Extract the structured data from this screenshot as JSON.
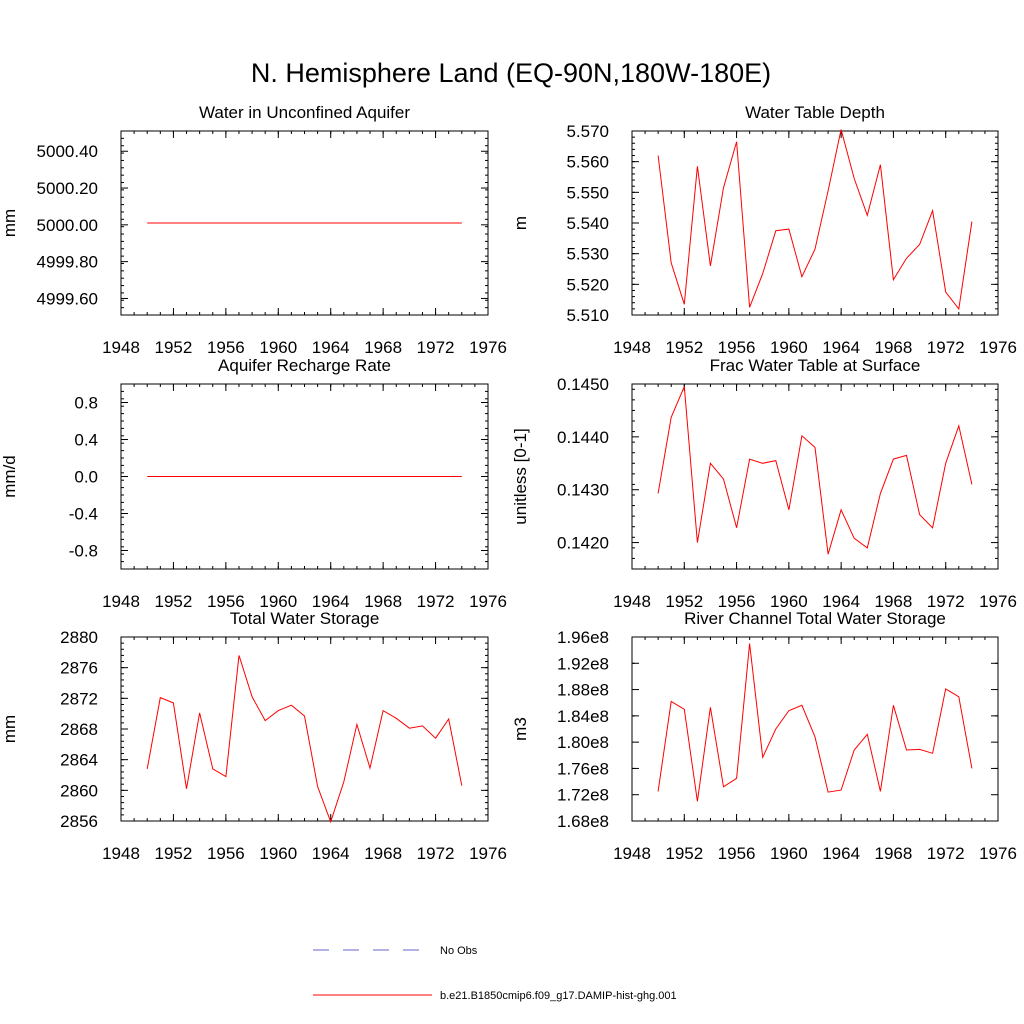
{
  "title": "N. Hemisphere Land (EQ-90N,180W-180E)",
  "colors": {
    "model": "#ff0000",
    "obs": "#6666cc"
  },
  "legend": [
    {
      "label": "No Obs",
      "style": "dashed",
      "color": "#6666cc"
    },
    {
      "label": "b.e21.B1850cmip6.f09_g17.DAMIP-hist-ghg.001",
      "style": "solid",
      "color": "#ff0000"
    }
  ],
  "chart_data": [
    {
      "type": "line",
      "title": "Water in Unconfined Aquifer",
      "ylabel": "mm",
      "xlim": [
        1948,
        1976
      ],
      "ylim": [
        4999.51,
        5000.51
      ],
      "xticks": [
        "1948",
        "1952",
        "1956",
        "1960",
        "1964",
        "1968",
        "1972",
        "1976"
      ],
      "yticks": [
        {
          "v": 4999.6,
          "label": "4999.60"
        },
        {
          "v": 4999.8,
          "label": "4999.80"
        },
        {
          "v": 5000.0,
          "label": "5000.00"
        },
        {
          "v": 5000.2,
          "label": "5000.20"
        },
        {
          "v": 5000.4,
          "label": "5000.40"
        }
      ],
      "minor_x": 1,
      "minor_y": 0.04,
      "series": [
        {
          "x": [
            1950,
            1951,
            1952,
            1953,
            1954,
            1955,
            1956,
            1957,
            1958,
            1959,
            1960,
            1961,
            1962,
            1963,
            1964,
            1965,
            1966,
            1967,
            1968,
            1969,
            1970,
            1971,
            1972,
            1973,
            1974
          ],
          "values": [
            5000.01,
            5000.01,
            5000.01,
            5000.01,
            5000.01,
            5000.01,
            5000.01,
            5000.01,
            5000.01,
            5000.01,
            5000.01,
            5000.01,
            5000.01,
            5000.01,
            5000.01,
            5000.01,
            5000.01,
            5000.01,
            5000.01,
            5000.01,
            5000.01,
            5000.01,
            5000.01,
            5000.01,
            5000.01
          ]
        }
      ]
    },
    {
      "type": "line",
      "title": "Water Table Depth",
      "ylabel": "m",
      "xlim": [
        1948,
        1976
      ],
      "ylim": [
        5.51,
        5.57
      ],
      "xticks": [
        "1948",
        "1952",
        "1956",
        "1960",
        "1964",
        "1968",
        "1972",
        "1976"
      ],
      "yticks": [
        {
          "v": 5.51,
          "label": "5.510"
        },
        {
          "v": 5.52,
          "label": "5.520"
        },
        {
          "v": 5.53,
          "label": "5.530"
        },
        {
          "v": 5.54,
          "label": "5.540"
        },
        {
          "v": 5.55,
          "label": "5.550"
        },
        {
          "v": 5.56,
          "label": "5.560"
        },
        {
          "v": 5.57,
          "label": "5.570"
        }
      ],
      "minor_x": 1,
      "minor_y": 0.002,
      "series": [
        {
          "x": [
            1950,
            1951,
            1952,
            1953,
            1954,
            1955,
            1956,
            1957,
            1958,
            1959,
            1960,
            1961,
            1962,
            1963,
            1964,
            1965,
            1966,
            1967,
            1968,
            1969,
            1970,
            1971,
            1972,
            1973,
            1974
          ],
          "values": [
            5.562,
            5.527,
            5.5135,
            5.5585,
            5.526,
            5.5515,
            5.5665,
            5.5125,
            5.5235,
            5.5375,
            5.538,
            5.5225,
            5.5315,
            5.5505,
            5.5705,
            5.5545,
            5.5425,
            5.559,
            5.5215,
            5.5285,
            5.533,
            5.544,
            5.5175,
            5.512,
            5.5405
          ]
        }
      ]
    },
    {
      "type": "line",
      "title": "Aquifer Recharge Rate",
      "ylabel": "mm/d",
      "xlim": [
        1948,
        1976
      ],
      "ylim": [
        -1.0,
        1.0
      ],
      "xticks": [
        "1948",
        "1952",
        "1956",
        "1960",
        "1964",
        "1968",
        "1972",
        "1976"
      ],
      "yticks": [
        {
          "v": -0.8,
          "label": "-0.8"
        },
        {
          "v": -0.4,
          "label": "-0.4"
        },
        {
          "v": 0.0,
          "label": "0.0"
        },
        {
          "v": 0.4,
          "label": "0.4"
        },
        {
          "v": 0.8,
          "label": "0.8"
        }
      ],
      "minor_x": 1,
      "minor_y": 0.08,
      "series": [
        {
          "x": [
            1950,
            1951,
            1952,
            1953,
            1954,
            1955,
            1956,
            1957,
            1958,
            1959,
            1960,
            1961,
            1962,
            1963,
            1964,
            1965,
            1966,
            1967,
            1968,
            1969,
            1970,
            1971,
            1972,
            1973,
            1974
          ],
          "values": [
            0,
            0,
            0,
            0,
            0,
            0,
            0,
            0,
            0,
            0,
            0,
            0,
            0,
            0,
            0,
            0,
            0,
            0,
            0,
            0,
            0,
            0,
            0,
            0,
            0
          ]
        }
      ]
    },
    {
      "type": "line",
      "title": "Frac Water Table at Surface",
      "ylabel": "unitless [0-1]",
      "xlim": [
        1948,
        1976
      ],
      "ylim": [
        0.1415,
        0.145
      ],
      "xticks": [
        "1948",
        "1952",
        "1956",
        "1960",
        "1964",
        "1968",
        "1972",
        "1976"
      ],
      "yticks": [
        {
          "v": 0.142,
          "label": "0.1420"
        },
        {
          "v": 0.143,
          "label": "0.1430"
        },
        {
          "v": 0.144,
          "label": "0.1440"
        },
        {
          "v": 0.145,
          "label": "0.1450"
        }
      ],
      "minor_x": 1,
      "minor_y": 0.0002,
      "series": [
        {
          "x": [
            1950,
            1951,
            1952,
            1953,
            1954,
            1955,
            1956,
            1957,
            1958,
            1959,
            1960,
            1961,
            1962,
            1963,
            1964,
            1965,
            1966,
            1967,
            1968,
            1969,
            1970,
            1971,
            1972,
            1973,
            1974
          ],
          "values": [
            0.14293,
            0.14437,
            0.14495,
            0.142,
            0.1435,
            0.1432,
            0.14228,
            0.14358,
            0.1435,
            0.14355,
            0.14262,
            0.14402,
            0.1438,
            0.14178,
            0.14262,
            0.14208,
            0.1419,
            0.14293,
            0.14358,
            0.14365,
            0.14253,
            0.14228,
            0.1435,
            0.14421,
            0.1431
          ]
        }
      ]
    },
    {
      "type": "line",
      "title": "Total Water Storage",
      "ylabel": "mm",
      "xlim": [
        1948,
        1976
      ],
      "ylim": [
        2856,
        2880
      ],
      "xticks": [
        "1948",
        "1952",
        "1956",
        "1960",
        "1964",
        "1968",
        "1972",
        "1976"
      ],
      "yticks": [
        {
          "v": 2856,
          "label": "2856"
        },
        {
          "v": 2860,
          "label": "2860"
        },
        {
          "v": 2864,
          "label": "2864"
        },
        {
          "v": 2868,
          "label": "2868"
        },
        {
          "v": 2872,
          "label": "2872"
        },
        {
          "v": 2876,
          "label": "2876"
        },
        {
          "v": 2880,
          "label": "2880"
        }
      ],
      "minor_x": 1,
      "minor_y": 0.8,
      "series": [
        {
          "x": [
            1950,
            1951,
            1952,
            1953,
            1954,
            1955,
            1956,
            1957,
            1958,
            1959,
            1960,
            1961,
            1962,
            1963,
            1964,
            1965,
            1966,
            1967,
            1968,
            1969,
            1970,
            1971,
            1972,
            1973,
            1974
          ],
          "values": [
            2862.8,
            2872.1,
            2871.4,
            2860.2,
            2870.1,
            2862.8,
            2861.8,
            2877.6,
            2872.2,
            2869.1,
            2870.4,
            2871.1,
            2869.7,
            2860.5,
            2855.9,
            2861.1,
            2868.6,
            2862.9,
            2870.4,
            2869.4,
            2868.1,
            2868.4,
            2866.8,
            2869.3,
            2860.6
          ]
        }
      ]
    },
    {
      "type": "line",
      "title": "River Channel Total Water Storage",
      "ylabel": "m3",
      "xlim": [
        1948,
        1976
      ],
      "ylim": [
        168000000.0,
        196000000.0
      ],
      "xticks": [
        "1948",
        "1952",
        "1956",
        "1960",
        "1964",
        "1968",
        "1972",
        "1976"
      ],
      "yticks": [
        {
          "v": 168000000.0,
          "label": "1.68e8"
        },
        {
          "v": 172000000.0,
          "label": "1.72e8"
        },
        {
          "v": 176000000.0,
          "label": "1.76e8"
        },
        {
          "v": 180000000.0,
          "label": "1.80e8"
        },
        {
          "v": 184000000.0,
          "label": "1.84e8"
        },
        {
          "v": 188000000.0,
          "label": "1.88e8"
        },
        {
          "v": 192000000.0,
          "label": "1.92e8"
        },
        {
          "v": 196000000.0,
          "label": "1.96e8"
        }
      ],
      "minor_x": 1,
      "minor_y": 8000000,
      "series": [
        {
          "x": [
            1950,
            1951,
            1952,
            1953,
            1954,
            1955,
            1956,
            1957,
            1958,
            1959,
            1960,
            1961,
            1962,
            1963,
            1964,
            1965,
            1966,
            1967,
            1968,
            1969,
            1970,
            1971,
            1972,
            1973,
            1974
          ],
          "values": [
            172500000,
            186200000,
            185000000,
            171000000,
            185300000,
            173200000,
            174500000,
            195000000,
            177700000,
            182000000,
            184800000,
            185600000,
            180800000,
            172400000,
            172700000,
            178800000,
            181200000,
            172500000,
            185600000,
            178800000,
            178900000,
            178300000,
            188100000,
            186900000,
            176000000
          ]
        }
      ]
    }
  ]
}
